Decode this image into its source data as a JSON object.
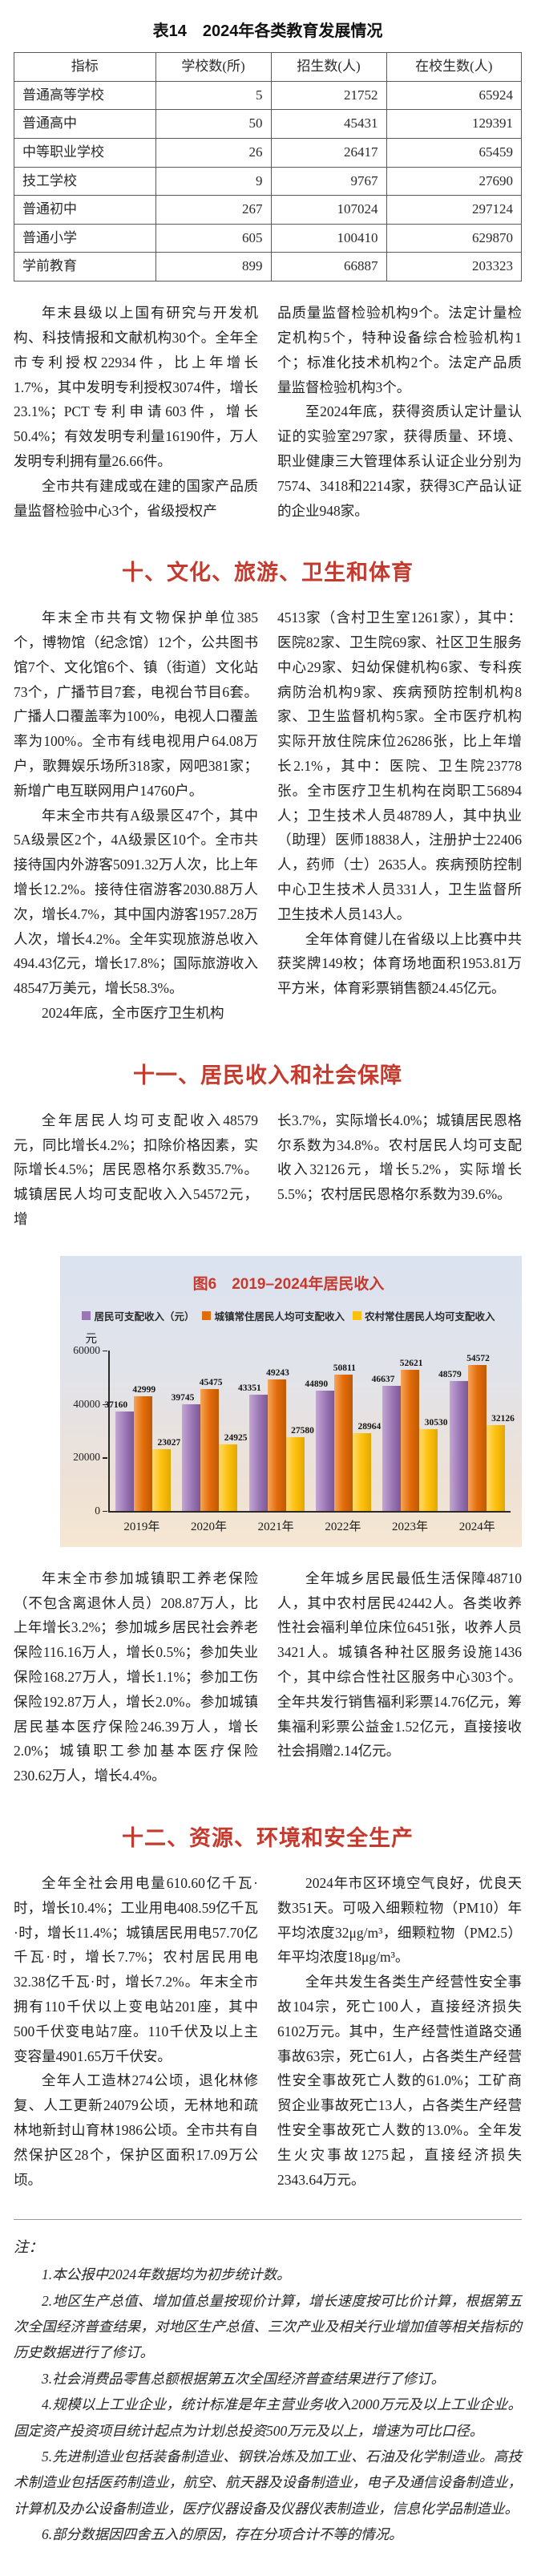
{
  "colors": {
    "section_title_color": "#c63a2e",
    "chart_title_color": "#c63a2e",
    "bar_purple": "#9a76b4",
    "bar_orange": "#e36c0a",
    "bar_yellow": "#fdc00d"
  },
  "table": {
    "title": "表14　2024年各类教育发展情况",
    "headers": [
      "指标",
      "学校数(所)",
      "招生数(人)",
      "在校生数(人)"
    ],
    "rows": [
      [
        "普通高等学校",
        "5",
        "21752",
        "65924"
      ],
      [
        "普通高中",
        "50",
        "45431",
        "129391"
      ],
      [
        "中等职业学校",
        "26",
        "26417",
        "65459"
      ],
      [
        "技工学校",
        "9",
        "9767",
        "27690"
      ],
      [
        "普通初中",
        "267",
        "107024",
        "297124"
      ],
      [
        "普通小学",
        "605",
        "100410",
        "629870"
      ],
      [
        "学前教育",
        "899",
        "66887",
        "203323"
      ]
    ]
  },
  "sections": {
    "science": {
      "left": [
        "年末县级以上国有研究与开发机构、科技情报和文献机构30个。全年全市专利授权22934件，比上年增长1.7%，其中发明专利授权3074件，增长23.1%；PCT专利申请603件，增长50.4%；有效发明专利量16190件，万人发明专利拥有量26.66件。",
        "全市共有建成或在建的国家产品质量监督检验中心3个，省级授权产"
      ],
      "right": [
        "品质量监督检验机构9个。法定计量检定机构5个，特种设备综合检验机构1个；标准化技术机构2个。法定产品质量监督检验机构3个。",
        "至2024年底，获得资质认定计量认证的实验室297家，获得质量、环境、职业健康三大管理体系认证企业分别为7574、3418和2214家，获得3C产品认证的企业948家。"
      ]
    },
    "culture": {
      "title": "十、文化、旅游、卫生和体育",
      "left": [
        "年末全市共有文物保护单位385个，博物馆（纪念馆）12个，公共图书馆7个、文化馆6个、镇（街道）文化站73个，广播节目7套，电视台节目6套。广播人口覆盖率为100%，电视人口覆盖率为100%。全市有线电视用户64.08万户，歌舞娱乐场所318家，网吧381家；新增广电互联网用户14760户。",
        "年末全市共有A级景区47个，其中5A级景区2个，4A级景区10个。全市共接待国内外游客5091.32万人次，比上年增长12.2%。接待住宿游客2030.88万人次，增长4.7%，其中国内游客1957.28万人次，增长4.2%。全年实现旅游总收入494.43亿元，增长17.8%；国际旅游收入48547万美元，增长58.3%。",
        "2024年底，全市医疗卫生机构"
      ],
      "right": [
        "4513家（含村卫生室1261家），其中：医院82家、卫生院69家、社区卫生服务中心29家、妇幼保健机构6家、专科疾病防治机构9家、疾病预防控制机构8家、卫生监督机构5家。全市医疗机构实际开放住院床位26286张，比上年增长2.1%，其中：医院、卫生院23778张。全市医疗卫生机构在岗职工56894人；卫生技术人员48789人，其中执业（助理）医师18838人，注册护士22406人，药师（士）2635人。疾病预防控制中心卫生技术人员331人，卫生监督所卫生技术人员143人。",
        "全年体育健儿在省级以上比赛中共获奖牌149枚；体育场地面积1953.81万平方米，体育彩票销售额24.45亿元。"
      ]
    },
    "income": {
      "title": "十一、居民收入和社会保障",
      "left": [
        "全年居民人均可支配收入48579元，同比增长4.2%；扣除价格因素，实际增长4.5%；居民恩格尔系数35.7%。城镇居民人均可支配收入入54572元，增"
      ],
      "right": [
        "长3.7%，实际增长4.0%；城镇居民恩格尔系数为34.8%。农村居民人均可支配收入32126元，增长5.2%，实际增长5.5%；农村居民恩格尔系数为39.6%。"
      ]
    },
    "social": {
      "left": [
        "年末全市参加城镇职工养老保险（不包含离退休人员）208.87万人，比上年增长3.2%；参加城乡居民社会养老保险116.16万人，增长0.5%；参加失业保险168.27万人，增长1.1%；参加工伤保险192.87万人，增长2.0%。参加城镇居民基本医疗保险246.39万人，增长2.0%；城镇职工参加基本医疗保险230.62万人，增长4.4%。"
      ],
      "right": [
        "全年城乡居民最低生活保障48710人，其中农村居民42442人。各类收养性社会福利单位床位6451张，收养人员3421人。城镇各种社区服务设施1436个，其中综合性社区服务中心303个。全年共发行销售福利彩票14.76亿元，筹集福利彩票公益金1.52亿元，直接接收社会捐赠2.14亿元。"
      ]
    },
    "resources": {
      "title": "十二、资源、环境和安全生产",
      "left": [
        "全年全社会用电量610.60亿千瓦·时，增长10.4%；工业用电408.59亿千瓦·时，增长11.4%；城镇居民用电57.70亿千瓦·时，增长7.7%；农村居民用电32.38亿千瓦·时，增长7.2%。年末全市拥有110千伏以上变电站201座，其中500千伏变电站7座。110千伏及以上主变容量4901.65万千伏安。",
        "全年人工造林274公顷，退化林修复、人工更新24079公顷，无林地和疏林地新封山育林1986公顷。全市共有自然保护区28个，保护区面积17.09万公顷。"
      ],
      "right": [
        "2024年市区环境空气良好，优良天数351天。可吸入细颗粒物（PM10）年平均浓度32μg/m³，细颗粒物（PM2.5）年平均浓度18μg/m³。",
        "全年共发生各类生产经营性安全事故104宗，死亡100人，直接经济损失6102万元。其中，生产经营性道路交通事故63宗，死亡61人，占各类生产经营性安全事故死亡人数的61.0%；工矿商贸企业事故死亡13人，占各类生产经营性安全事故死亡人数的13.0%。全年发生火灾事故1275起，直接经济损失2343.64万元。"
      ]
    }
  },
  "chart_data": {
    "type": "bar",
    "title": "图6　2019–2024年居民收入",
    "unit": "元",
    "x": [
      "2019年",
      "2020年",
      "2021年",
      "2022年",
      "2023年",
      "2024年"
    ],
    "series": [
      {
        "name": "居民可支配收入（元）",
        "color": "#9a76b4",
        "values": [
          37160,
          39745,
          43351,
          44890,
          46637,
          48579
        ]
      },
      {
        "name": "城镇常住居民人均可支配收入",
        "color": "#e36c0a",
        "values": [
          42999,
          45475,
          49243,
          50811,
          52621,
          54572
        ]
      },
      {
        "name": "农村常住居民人均可支配收入",
        "color": "#fdc00d",
        "values": [
          23027,
          24925,
          27580,
          28964,
          30530,
          32126
        ]
      }
    ],
    "ylim": [
      0,
      60000
    ],
    "yticks": [
      0,
      20000,
      40000,
      60000
    ],
    "legend_position": "top",
    "grid": false
  },
  "notes": {
    "label": "注：",
    "items": [
      "1.本公报中2024年数据均为初步统计数。",
      "2.地区生产总值、增加值总量按现价计算，增长速度按可比价计算，根据第五次全国经济普查结果，对地区生产总值、三次产业及相关行业增加值等相关指标的历史数据进行了修订。",
      "3.社会消费品零售总额根据第五次全国经济普查结果进行了修订。",
      "4.规模以上工业企业，统计标准是年主营业务收入2000万元及以上工业企业。固定资产投资项目统计起点为计划总投资500万元及以上，增速为可比口径。",
      "5.先进制造业包括装备制造业、钢铁冶炼及加工业、石油及化学制造业。高技术制造业包括医药制造业，航空、航天器及设备制造业，电子及通信设备制造业，计算机及办公设备制造业，医疗仪器设备及仪器仪表制造业，信息化学品制造业。",
      "6.部分数据因四舍五入的原因，存在分项合计不等的情况。"
    ]
  }
}
